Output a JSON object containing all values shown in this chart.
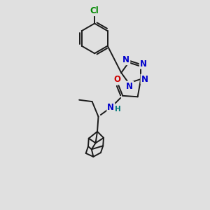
{
  "bg_color": "#e0e0e0",
  "bond_color": "#1a1a1a",
  "bond_width": 1.4,
  "atom_colors": {
    "C": "#1a1a1a",
    "N": "#0000cc",
    "O": "#cc0000",
    "Cl": "#008800",
    "H": "#007777"
  },
  "fs": 7.5
}
